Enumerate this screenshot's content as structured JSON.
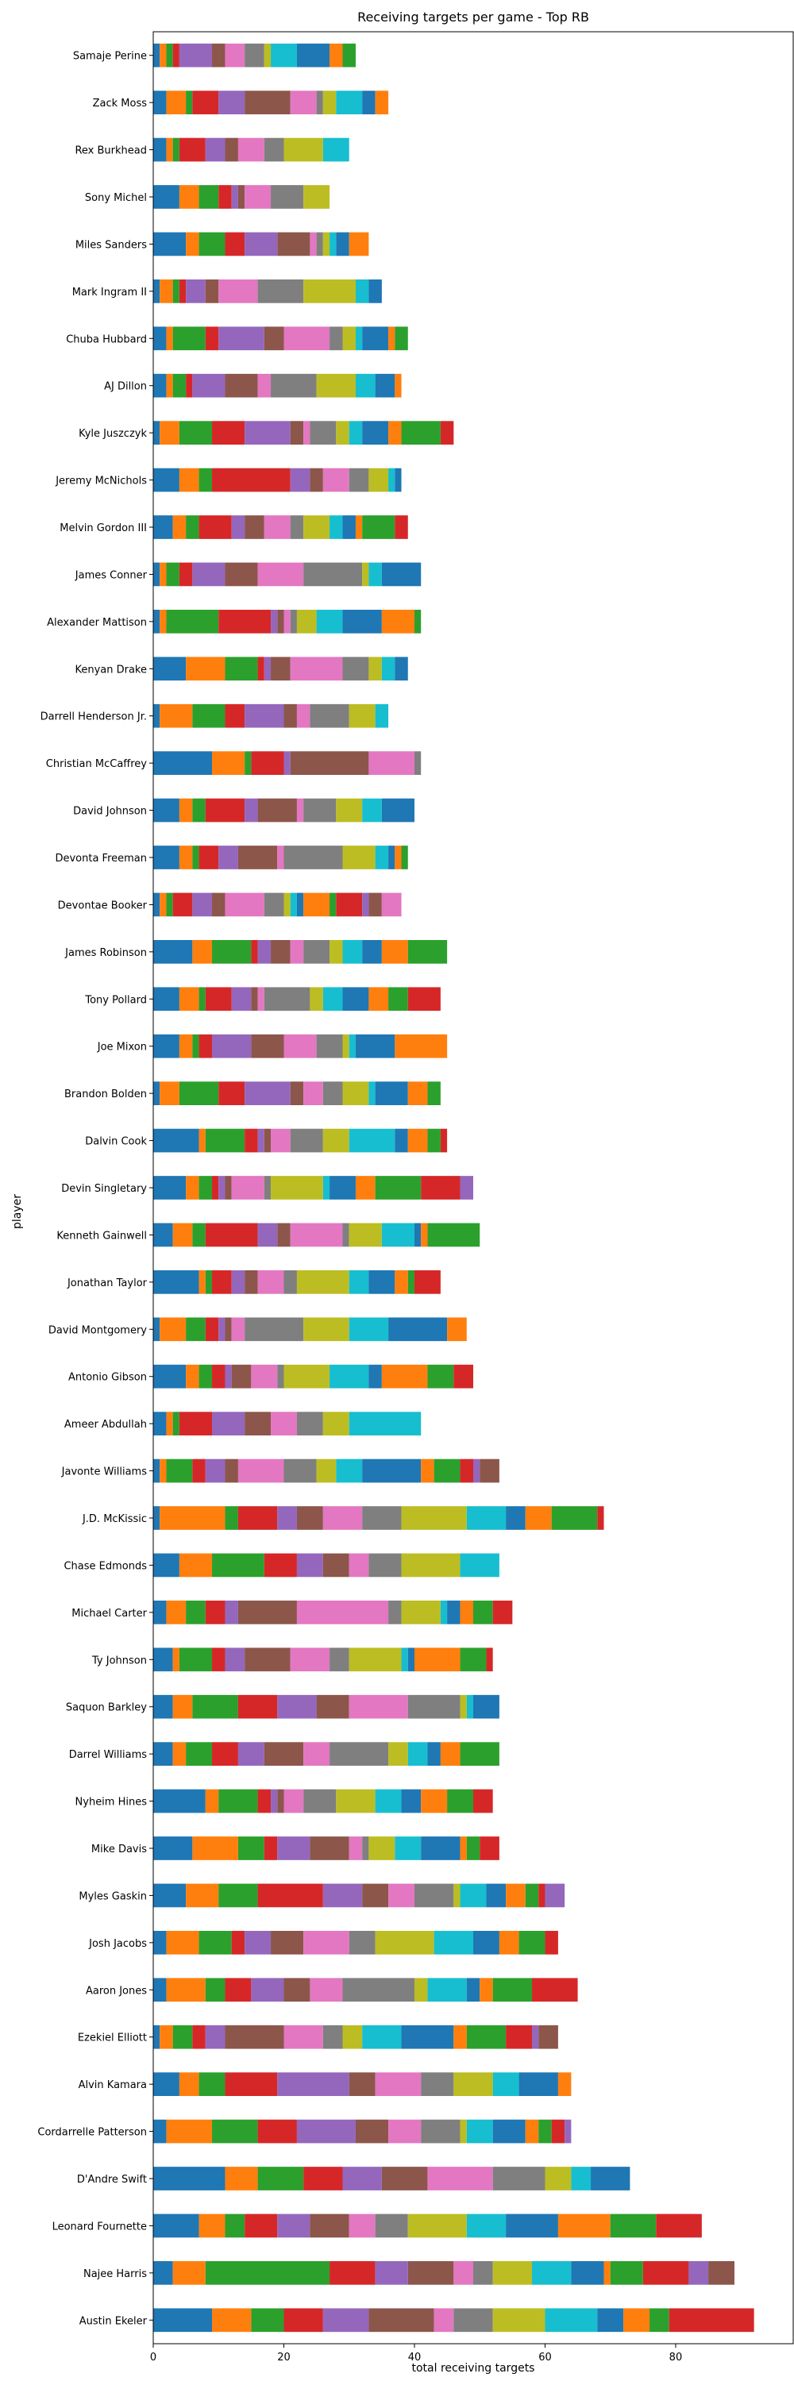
{
  "chart_data": {
    "type": "bar",
    "orientation": "horizontal",
    "stacked": true,
    "title": "Receiving targets per game - Top RB",
    "xlabel": "total receiving targets",
    "ylabel": "player",
    "xlim": [
      0,
      98
    ],
    "xticks": [
      0,
      20,
      40,
      60,
      80
    ],
    "grid": false,
    "legend": "none",
    "colors": [
      "#1f77b4",
      "#ff7f0e",
      "#2ca02c",
      "#d62728",
      "#9467bd",
      "#8c564b",
      "#e377c2",
      "#7f7f7f",
      "#bcbd22",
      "#17becf"
    ],
    "players": [
      {
        "name": "Samaje Perine",
        "values": [
          1,
          1,
          1,
          1,
          5,
          2,
          3,
          3,
          1,
          4,
          5,
          2,
          2
        ]
      },
      {
        "name": "Zack Moss",
        "values": [
          2,
          3,
          1,
          4,
          4,
          7,
          4,
          1,
          2,
          4,
          2,
          2
        ]
      },
      {
        "name": "Rex Burkhead",
        "values": [
          2,
          1,
          1,
          4,
          3,
          2,
          4,
          3,
          6,
          4
        ]
      },
      {
        "name": "Sony Michel",
        "values": [
          4,
          3,
          3,
          2,
          1,
          1,
          4,
          5,
          4
        ]
      },
      {
        "name": "Miles Sanders",
        "values": [
          5,
          2,
          4,
          3,
          5,
          5,
          1,
          1,
          1,
          1,
          2,
          3
        ]
      },
      {
        "name": "Mark Ingram II",
        "values": [
          1,
          2,
          1,
          1,
          3,
          2,
          6,
          7,
          8,
          2,
          2
        ]
      },
      {
        "name": "Chuba Hubbard",
        "values": [
          2,
          1,
          5,
          2,
          7,
          3,
          7,
          2,
          2,
          1,
          4,
          1,
          2
        ]
      },
      {
        "name": "AJ Dillon",
        "values": [
          2,
          1,
          2,
          1,
          5,
          5,
          2,
          7,
          6,
          3,
          3,
          1
        ]
      },
      {
        "name": "Kyle Juszczyk",
        "values": [
          1,
          3,
          5,
          5,
          7,
          2,
          1,
          4,
          2,
          2,
          4,
          2,
          6,
          2
        ]
      },
      {
        "name": "Jeremy McNichols",
        "values": [
          4,
          3,
          2,
          12,
          3,
          2,
          4,
          3,
          3,
          1,
          1
        ]
      },
      {
        "name": "Melvin Gordon III",
        "values": [
          3,
          2,
          2,
          5,
          2,
          3,
          4,
          2,
          4,
          2,
          2,
          1,
          5,
          2
        ]
      },
      {
        "name": "James Conner",
        "values": [
          1,
          1,
          2,
          2,
          5,
          5,
          7,
          9,
          1,
          2,
          6
        ]
      },
      {
        "name": "Alexander Mattison",
        "values": [
          1,
          1,
          8,
          8,
          1,
          1,
          1,
          1,
          3,
          4,
          6,
          5,
          1
        ]
      },
      {
        "name": "Kenyan Drake",
        "values": [
          5,
          6,
          5,
          1,
          1,
          3,
          8,
          4,
          2,
          2,
          2
        ]
      },
      {
        "name": "Darrell Henderson Jr.",
        "values": [
          1,
          5,
          5,
          3,
          6,
          2,
          2,
          6,
          4,
          2
        ]
      },
      {
        "name": "Christian McCaffrey",
        "values": [
          9,
          5,
          1,
          5,
          1,
          12,
          7,
          1
        ]
      },
      {
        "name": "David Johnson",
        "values": [
          4,
          2,
          2,
          6,
          2,
          6,
          1,
          5,
          4,
          3,
          5
        ]
      },
      {
        "name": "Devonta Freeman",
        "values": [
          4,
          2,
          1,
          3,
          3,
          6,
          1,
          9,
          5,
          2,
          1,
          1,
          1
        ]
      },
      {
        "name": "Devontae Booker",
        "values": [
          1,
          1,
          1,
          3,
          3,
          2,
          6,
          3,
          1,
          1,
          1,
          4,
          1,
          4,
          1,
          2,
          3
        ]
      },
      {
        "name": "James Robinson",
        "values": [
          6,
          3,
          6,
          1,
          2,
          3,
          2,
          4,
          2,
          3,
          3,
          4,
          6
        ]
      },
      {
        "name": "Tony Pollard",
        "values": [
          4,
          3,
          1,
          4,
          3,
          1,
          1,
          7,
          2,
          3,
          4,
          3,
          3,
          5
        ]
      },
      {
        "name": "Joe Mixon",
        "values": [
          4,
          2,
          1,
          2,
          6,
          5,
          5,
          4,
          1,
          1,
          6,
          8
        ]
      },
      {
        "name": "Brandon Bolden",
        "values": [
          1,
          3,
          6,
          4,
          7,
          2,
          3,
          3,
          4,
          1,
          5,
          3,
          2
        ]
      },
      {
        "name": "Dalvin Cook",
        "values": [
          7,
          1,
          6,
          2,
          1,
          1,
          3,
          5,
          4,
          7,
          2,
          3,
          2,
          1
        ]
      },
      {
        "name": "Devin Singletary",
        "values": [
          5,
          2,
          2,
          1,
          1,
          1,
          5,
          1,
          8,
          1,
          4,
          3,
          7,
          6,
          2
        ]
      },
      {
        "name": "Kenneth Gainwell",
        "values": [
          3,
          3,
          2,
          8,
          3,
          2,
          8,
          1,
          5,
          5,
          1,
          1,
          8
        ]
      },
      {
        "name": "Jonathan Taylor",
        "values": [
          7,
          1,
          1,
          3,
          2,
          2,
          4,
          2,
          8,
          3,
          4,
          2,
          1,
          4
        ]
      },
      {
        "name": "David Montgomery",
        "values": [
          1,
          4,
          3,
          2,
          1,
          1,
          2,
          9,
          7,
          6,
          9,
          3
        ]
      },
      {
        "name": "Antonio Gibson",
        "values": [
          5,
          2,
          2,
          2,
          1,
          3,
          4,
          1,
          7,
          6,
          2,
          7,
          4,
          3
        ]
      },
      {
        "name": "Ameer Abdullah",
        "values": [
          2,
          1,
          1,
          5,
          5,
          4,
          4,
          4,
          4,
          11
        ]
      },
      {
        "name": "Javonte Williams",
        "values": [
          1,
          1,
          4,
          2,
          3,
          2,
          7,
          5,
          3,
          4,
          9,
          2,
          4,
          2,
          1,
          3
        ]
      },
      {
        "name": "J.D. McKissic",
        "values": [
          1,
          10,
          2,
          6,
          3,
          4,
          6,
          6,
          10,
          6,
          3,
          4,
          7,
          1
        ]
      },
      {
        "name": "Chase Edmonds",
        "values": [
          4,
          5,
          8,
          5,
          4,
          4,
          3,
          5,
          9,
          6
        ]
      },
      {
        "name": "Michael Carter",
        "values": [
          2,
          3,
          3,
          3,
          2,
          9,
          14,
          2,
          6,
          1,
          2,
          2,
          3,
          3
        ]
      },
      {
        "name": "Ty Johnson",
        "values": [
          3,
          1,
          5,
          2,
          3,
          7,
          6,
          3,
          8,
          1,
          1,
          7,
          4,
          1
        ]
      },
      {
        "name": "Saquon Barkley",
        "values": [
          3,
          3,
          7,
          6,
          6,
          5,
          9,
          8,
          1,
          1,
          4
        ]
      },
      {
        "name": "Darrel Williams",
        "values": [
          3,
          2,
          4,
          4,
          4,
          6,
          4,
          9,
          3,
          3,
          2,
          3,
          6
        ]
      },
      {
        "name": "Nyheim Hines",
        "values": [
          8,
          2,
          6,
          2,
          1,
          1,
          3,
          5,
          6,
          4,
          3,
          4,
          4,
          3
        ]
      },
      {
        "name": "Mike Davis",
        "values": [
          6,
          7,
          4,
          2,
          5,
          6,
          2,
          1,
          4,
          4,
          6,
          1,
          2,
          3
        ]
      },
      {
        "name": "Myles Gaskin",
        "values": [
          5,
          5,
          6,
          10,
          6,
          4,
          4,
          6,
          1,
          4,
          3,
          3,
          2,
          1,
          3
        ]
      },
      {
        "name": "Josh Jacobs",
        "values": [
          2,
          5,
          5,
          2,
          4,
          5,
          7,
          4,
          9,
          6,
          4,
          3,
          4,
          2
        ]
      },
      {
        "name": "Aaron Jones",
        "values": [
          2,
          6,
          3,
          4,
          5,
          4,
          5,
          11,
          2,
          6,
          2,
          2,
          6,
          7
        ]
      },
      {
        "name": "Ezekiel Elliott",
        "values": [
          1,
          2,
          3,
          2,
          3,
          9,
          6,
          3,
          3,
          6,
          8,
          2,
          6,
          4,
          1,
          3
        ]
      },
      {
        "name": "Alvin Kamara",
        "values": [
          4,
          3,
          4,
          8,
          11,
          4,
          7,
          5,
          6,
          4,
          6,
          2
        ]
      },
      {
        "name": "Cordarrelle Patterson",
        "values": [
          2,
          7,
          7,
          6,
          9,
          5,
          5,
          6,
          1,
          4,
          5,
          2,
          2,
          2,
          1
        ]
      },
      {
        "name": "D'Andre Swift",
        "values": [
          11,
          5,
          7,
          6,
          6,
          7,
          10,
          8,
          4,
          3,
          6
        ]
      },
      {
        "name": "Leonard Fournette",
        "values": [
          7,
          4,
          3,
          5,
          5,
          6,
          4,
          5,
          9,
          6,
          8,
          8,
          7,
          7
        ]
      },
      {
        "name": "Najee Harris",
        "values": [
          3,
          5,
          19,
          7,
          5,
          7,
          3,
          3,
          6,
          6,
          5,
          1,
          5,
          7,
          3,
          4
        ]
      },
      {
        "name": "Austin Ekeler",
        "values": [
          9,
          6,
          5,
          6,
          7,
          10,
          3,
          6,
          8,
          8,
          4,
          4,
          3,
          13
        ]
      }
    ]
  }
}
